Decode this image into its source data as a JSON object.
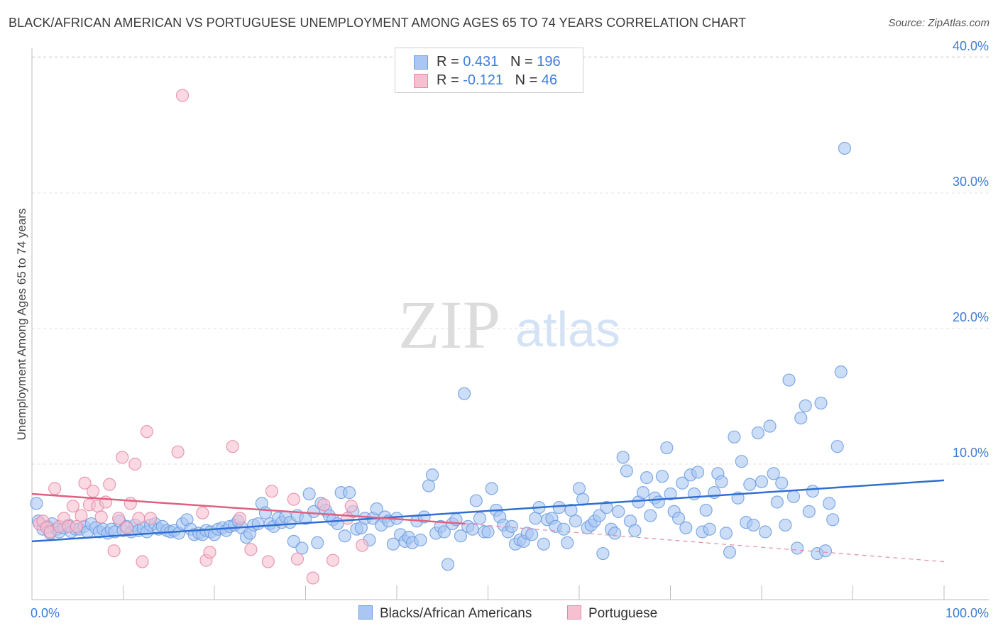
{
  "title": "BLACK/AFRICAN AMERICAN VS PORTUGUESE UNEMPLOYMENT AMONG AGES 65 TO 74 YEARS CORRELATION CHART",
  "source": "Source: ZipAtlas.com",
  "watermark": {
    "zip": "ZIP",
    "atlas": "atlas"
  },
  "legend_top": {
    "rows": [
      {
        "r_label": "R = ",
        "r_value": "0.431",
        "n_label": "N = ",
        "n_value": "196",
        "color": "#a9c7f2",
        "border": "#6d9ce0"
      },
      {
        "r_label": "R = ",
        "r_value": "-0.121",
        "n_label": "N = ",
        "n_value": "46",
        "color": "#f6c0d1",
        "border": "#e48aa6"
      }
    ]
  },
  "legend_bottom": {
    "items": [
      {
        "label": "Blacks/African Americans",
        "color": "#a9c7f2",
        "border": "#6d9ce0"
      },
      {
        "label": "Portuguese",
        "color": "#f6c0d1",
        "border": "#e48aa6"
      }
    ]
  },
  "chart_data": {
    "type": "scatter",
    "title": "BLACK/AFRICAN AMERICAN VS PORTUGUESE UNEMPLOYMENT AMONG AGES 65 TO 74 YEARS CORRELATION CHART",
    "xlabel": "",
    "ylabel": "Unemployment Among Ages 65 to 74 years",
    "xlim": [
      0,
      100
    ],
    "ylim": [
      0,
      42
    ],
    "x_tick_labels": [
      "0.0%",
      "100.0%"
    ],
    "y_ticks": [
      10,
      20,
      30,
      40
    ],
    "y_tick_labels": [
      "10.0%",
      "20.0%",
      "30.0%",
      "40.0%"
    ],
    "grid": "horizontal dashed",
    "legend_position": "top-center",
    "series": [
      {
        "name": "Blacks/African Americans",
        "color": "#6d9ce0",
        "fill": "#a9c7f2",
        "r": 0.431,
        "n": 196,
        "trend": {
          "x": [
            0,
            100
          ],
          "y": [
            4.3,
            8.8
          ]
        },
        "points": [
          [
            0.5,
            7.1
          ],
          [
            0.7,
            5.8
          ],
          [
            1.2,
            5.2
          ],
          [
            1.7,
            5.4
          ],
          [
            2.0,
            4.9
          ],
          [
            2.2,
            5.6
          ],
          [
            2.7,
            5.2
          ],
          [
            3.0,
            5.0
          ],
          [
            3.5,
            5.3
          ],
          [
            4.0,
            5.5
          ],
          [
            4.3,
            5.0
          ],
          [
            4.8,
            5.2
          ],
          [
            5.2,
            5.2
          ],
          [
            5.7,
            5.4
          ],
          [
            6.1,
            5.0
          ],
          [
            6.5,
            5.6
          ],
          [
            7.0,
            5.3
          ],
          [
            7.4,
            5.0
          ],
          [
            7.8,
            5.2
          ],
          [
            8.3,
            4.9
          ],
          [
            8.7,
            5.2
          ],
          [
            9.1,
            5.0
          ],
          [
            9.6,
            5.8
          ],
          [
            10.0,
            5.1
          ],
          [
            10.4,
            5.4
          ],
          [
            10.9,
            5.0
          ],
          [
            11.3,
            5.5
          ],
          [
            11.7,
            5.1
          ],
          [
            12.2,
            5.3
          ],
          [
            12.6,
            5.0
          ],
          [
            13.0,
            5.5
          ],
          [
            13.5,
            5.6
          ],
          [
            13.9,
            5.2
          ],
          [
            14.3,
            5.4
          ],
          [
            14.8,
            5.1
          ],
          [
            15.2,
            5.0
          ],
          [
            15.6,
            5.1
          ],
          [
            16.1,
            4.9
          ],
          [
            16.5,
            5.6
          ],
          [
            17.0,
            5.9
          ],
          [
            17.4,
            5.2
          ],
          [
            17.8,
            4.8
          ],
          [
            18.3,
            4.9
          ],
          [
            18.7,
            4.8
          ],
          [
            19.1,
            5.1
          ],
          [
            19.6,
            5.0
          ],
          [
            20.0,
            4.8
          ],
          [
            20.4,
            5.2
          ],
          [
            20.9,
            5.3
          ],
          [
            21.3,
            5.1
          ],
          [
            21.7,
            5.4
          ],
          [
            22.2,
            5.5
          ],
          [
            22.6,
            5.8
          ],
          [
            23.0,
            5.3
          ],
          [
            23.5,
            4.6
          ],
          [
            23.9,
            4.9
          ],
          [
            24.3,
            5.5
          ],
          [
            24.8,
            5.6
          ],
          [
            25.2,
            7.1
          ],
          [
            25.6,
            6.4
          ],
          [
            26.1,
            5.6
          ],
          [
            26.5,
            5.4
          ],
          [
            27.0,
            6.0
          ],
          [
            27.4,
            5.7
          ],
          [
            27.8,
            6.1
          ],
          [
            28.3,
            5.7
          ],
          [
            28.7,
            4.3
          ],
          [
            29.1,
            6.2
          ],
          [
            29.6,
            3.8
          ],
          [
            30.0,
            6.0
          ],
          [
            30.4,
            7.8
          ],
          [
            30.9,
            6.5
          ],
          [
            31.3,
            4.2
          ],
          [
            31.7,
            7.1
          ],
          [
            32.2,
            6.6
          ],
          [
            32.6,
            6.2
          ],
          [
            33.0,
            5.9
          ],
          [
            33.5,
            5.6
          ],
          [
            33.9,
            7.9
          ],
          [
            34.3,
            4.7
          ],
          [
            34.8,
            7.9
          ],
          [
            35.2,
            6.5
          ],
          [
            35.6,
            5.2
          ],
          [
            36.1,
            5.3
          ],
          [
            36.5,
            6.0
          ],
          [
            37.0,
            4.4
          ],
          [
            37.4,
            6.0
          ],
          [
            37.8,
            6.7
          ],
          [
            38.3,
            5.5
          ],
          [
            38.7,
            6.1
          ],
          [
            39.1,
            5.8
          ],
          [
            39.6,
            4.1
          ],
          [
            40.0,
            6.0
          ],
          [
            40.4,
            4.8
          ],
          [
            40.9,
            4.3
          ],
          [
            41.3,
            4.6
          ],
          [
            41.7,
            4.2
          ],
          [
            42.2,
            5.8
          ],
          [
            42.6,
            4.4
          ],
          [
            43.0,
            6.1
          ],
          [
            43.5,
            8.4
          ],
          [
            43.9,
            9.2
          ],
          [
            44.3,
            4.9
          ],
          [
            44.8,
            5.4
          ],
          [
            45.2,
            5.0
          ],
          [
            45.6,
            2.6
          ],
          [
            46.1,
            5.6
          ],
          [
            46.5,
            5.9
          ],
          [
            47.0,
            4.7
          ],
          [
            47.4,
            15.2
          ],
          [
            47.8,
            5.4
          ],
          [
            48.3,
            5.2
          ],
          [
            48.7,
            7.3
          ],
          [
            49.1,
            6.0
          ],
          [
            49.6,
            5.0
          ],
          [
            50.0,
            5.0
          ],
          [
            50.4,
            8.2
          ],
          [
            50.9,
            6.6
          ],
          [
            51.3,
            6.1
          ],
          [
            51.7,
            5.5
          ],
          [
            52.2,
            5.0
          ],
          [
            52.6,
            5.4
          ],
          [
            53.0,
            4.1
          ],
          [
            53.5,
            4.4
          ],
          [
            53.9,
            4.3
          ],
          [
            54.3,
            4.9
          ],
          [
            54.8,
            4.8
          ],
          [
            55.2,
            6.0
          ],
          [
            55.6,
            6.8
          ],
          [
            56.1,
            4.1
          ],
          [
            56.5,
            5.9
          ],
          [
            57.0,
            6.0
          ],
          [
            57.4,
            5.4
          ],
          [
            57.8,
            6.8
          ],
          [
            58.3,
            5.2
          ],
          [
            58.7,
            4.2
          ],
          [
            59.1,
            6.6
          ],
          [
            59.6,
            5.8
          ],
          [
            60.0,
            8.2
          ],
          [
            60.4,
            7.4
          ],
          [
            60.9,
            5.3
          ],
          [
            61.3,
            5.5
          ],
          [
            61.7,
            5.8
          ],
          [
            62.2,
            6.2
          ],
          [
            62.6,
            3.4
          ],
          [
            63.0,
            6.8
          ],
          [
            63.5,
            5.2
          ],
          [
            63.9,
            4.9
          ],
          [
            64.3,
            6.5
          ],
          [
            64.8,
            10.5
          ],
          [
            65.2,
            9.5
          ],
          [
            65.6,
            5.8
          ],
          [
            66.1,
            5.1
          ],
          [
            66.5,
            7.2
          ],
          [
            67.0,
            7.9
          ],
          [
            67.4,
            9.0
          ],
          [
            67.8,
            6.2
          ],
          [
            68.3,
            7.5
          ],
          [
            68.7,
            7.2
          ],
          [
            69.1,
            9.1
          ],
          [
            69.6,
            11.2
          ],
          [
            70.0,
            7.8
          ],
          [
            70.4,
            6.5
          ],
          [
            70.9,
            6.0
          ],
          [
            71.3,
            8.6
          ],
          [
            71.7,
            5.3
          ],
          [
            72.2,
            9.2
          ],
          [
            72.6,
            7.8
          ],
          [
            73.0,
            9.4
          ],
          [
            73.5,
            5.0
          ],
          [
            73.9,
            6.6
          ],
          [
            74.3,
            5.2
          ],
          [
            74.8,
            7.9
          ],
          [
            75.2,
            9.3
          ],
          [
            75.6,
            8.7
          ],
          [
            76.1,
            4.9
          ],
          [
            76.5,
            3.5
          ],
          [
            77.0,
            12.0
          ],
          [
            77.4,
            7.5
          ],
          [
            77.8,
            10.2
          ],
          [
            78.3,
            5.7
          ],
          [
            78.7,
            8.5
          ],
          [
            79.1,
            5.5
          ],
          [
            79.6,
            12.3
          ],
          [
            80.0,
            8.7
          ],
          [
            80.4,
            5.0
          ],
          [
            80.9,
            12.8
          ],
          [
            81.3,
            9.3
          ],
          [
            81.7,
            7.2
          ],
          [
            82.2,
            8.6
          ],
          [
            82.6,
            5.5
          ],
          [
            83.0,
            16.2
          ],
          [
            83.5,
            7.6
          ],
          [
            83.9,
            3.8
          ],
          [
            84.3,
            13.4
          ],
          [
            84.8,
            14.3
          ],
          [
            85.2,
            6.5
          ],
          [
            85.6,
            8.0
          ],
          [
            86.1,
            3.4
          ],
          [
            86.5,
            14.5
          ],
          [
            87.0,
            3.6
          ],
          [
            87.4,
            7.1
          ],
          [
            87.8,
            5.9
          ],
          [
            88.3,
            11.3
          ],
          [
            88.7,
            16.8
          ],
          [
            89.1,
            33.3
          ]
        ]
      },
      {
        "name": "Portuguese",
        "color": "#e48aa6",
        "fill": "#f6c0d1",
        "r": -0.121,
        "n": 46,
        "trend": {
          "x": [
            0,
            47.5
          ],
          "y": [
            7.8,
            5.6
          ]
        },
        "trend_extended": {
          "x": [
            47.5,
            100
          ],
          "y": [
            5.6,
            2.8
          ]
        },
        "points": [
          [
            0.8,
            5.6
          ],
          [
            1.2,
            5.8
          ],
          [
            1.6,
            5.3
          ],
          [
            2.0,
            5.0
          ],
          [
            2.5,
            8.2
          ],
          [
            3.0,
            5.4
          ],
          [
            3.5,
            6.0
          ],
          [
            4.0,
            5.4
          ],
          [
            4.5,
            6.9
          ],
          [
            4.9,
            5.4
          ],
          [
            5.4,
            6.2
          ],
          [
            5.8,
            8.6
          ],
          [
            6.3,
            7.0
          ],
          [
            6.7,
            8.0
          ],
          [
            7.2,
            6.9
          ],
          [
            7.6,
            6.1
          ],
          [
            8.1,
            7.2
          ],
          [
            8.5,
            8.5
          ],
          [
            9.0,
            3.6
          ],
          [
            9.5,
            6.0
          ],
          [
            9.9,
            10.5
          ],
          [
            10.4,
            5.3
          ],
          [
            10.8,
            7.1
          ],
          [
            11.3,
            10.0
          ],
          [
            11.7,
            6.0
          ],
          [
            12.1,
            2.8
          ],
          [
            12.6,
            12.4
          ],
          [
            13.0,
            6.0
          ],
          [
            16.0,
            10.9
          ],
          [
            16.5,
            37.2
          ],
          [
            18.7,
            6.4
          ],
          [
            19.1,
            2.9
          ],
          [
            19.5,
            3.5
          ],
          [
            22.0,
            11.3
          ],
          [
            22.8,
            6.0
          ],
          [
            24.0,
            3.7
          ],
          [
            25.9,
            2.8
          ],
          [
            26.3,
            8.0
          ],
          [
            28.7,
            7.4
          ],
          [
            29.1,
            3.0
          ],
          [
            30.8,
            1.6
          ],
          [
            32.0,
            7.0
          ],
          [
            33.0,
            2.9
          ],
          [
            34.6,
            6.0
          ],
          [
            35.0,
            6.9
          ],
          [
            36.2,
            4.0
          ]
        ]
      }
    ]
  }
}
